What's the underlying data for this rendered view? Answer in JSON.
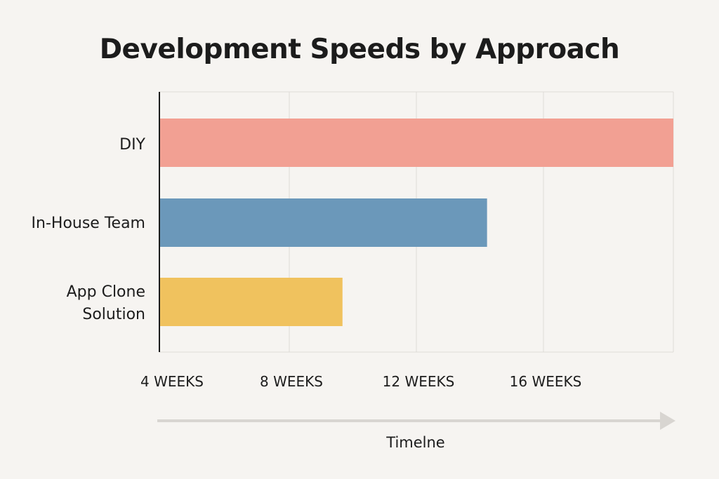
{
  "chart_data": {
    "type": "bar",
    "orientation": "horizontal",
    "title": "Development Speeds by Approach",
    "xlabel": "Timelne",
    "ylabel": "",
    "categories": [
      [
        "DIY"
      ],
      [
        "In-House Team"
      ],
      [
        "App Clone",
        "Solution"
      ]
    ],
    "values": [
      20,
      14.2,
      9.7
    ],
    "x_ticks": [
      {
        "value": 4,
        "label": "4 WEEKS"
      },
      {
        "value": 8,
        "label": "8 WEEKS"
      },
      {
        "value": 12,
        "label": "12 WEEKS"
      },
      {
        "value": 16,
        "label": "16 WEEKS"
      }
    ],
    "xlim": [
      4,
      20
    ],
    "grid": true,
    "legend": "none",
    "colors": [
      "#f2a093",
      "#6b98ba",
      "#f0c25e"
    ],
    "grid_color": "#dedbd7",
    "axis_color": "#1c1c1c",
    "arrow_color": "#d8d5d1"
  }
}
